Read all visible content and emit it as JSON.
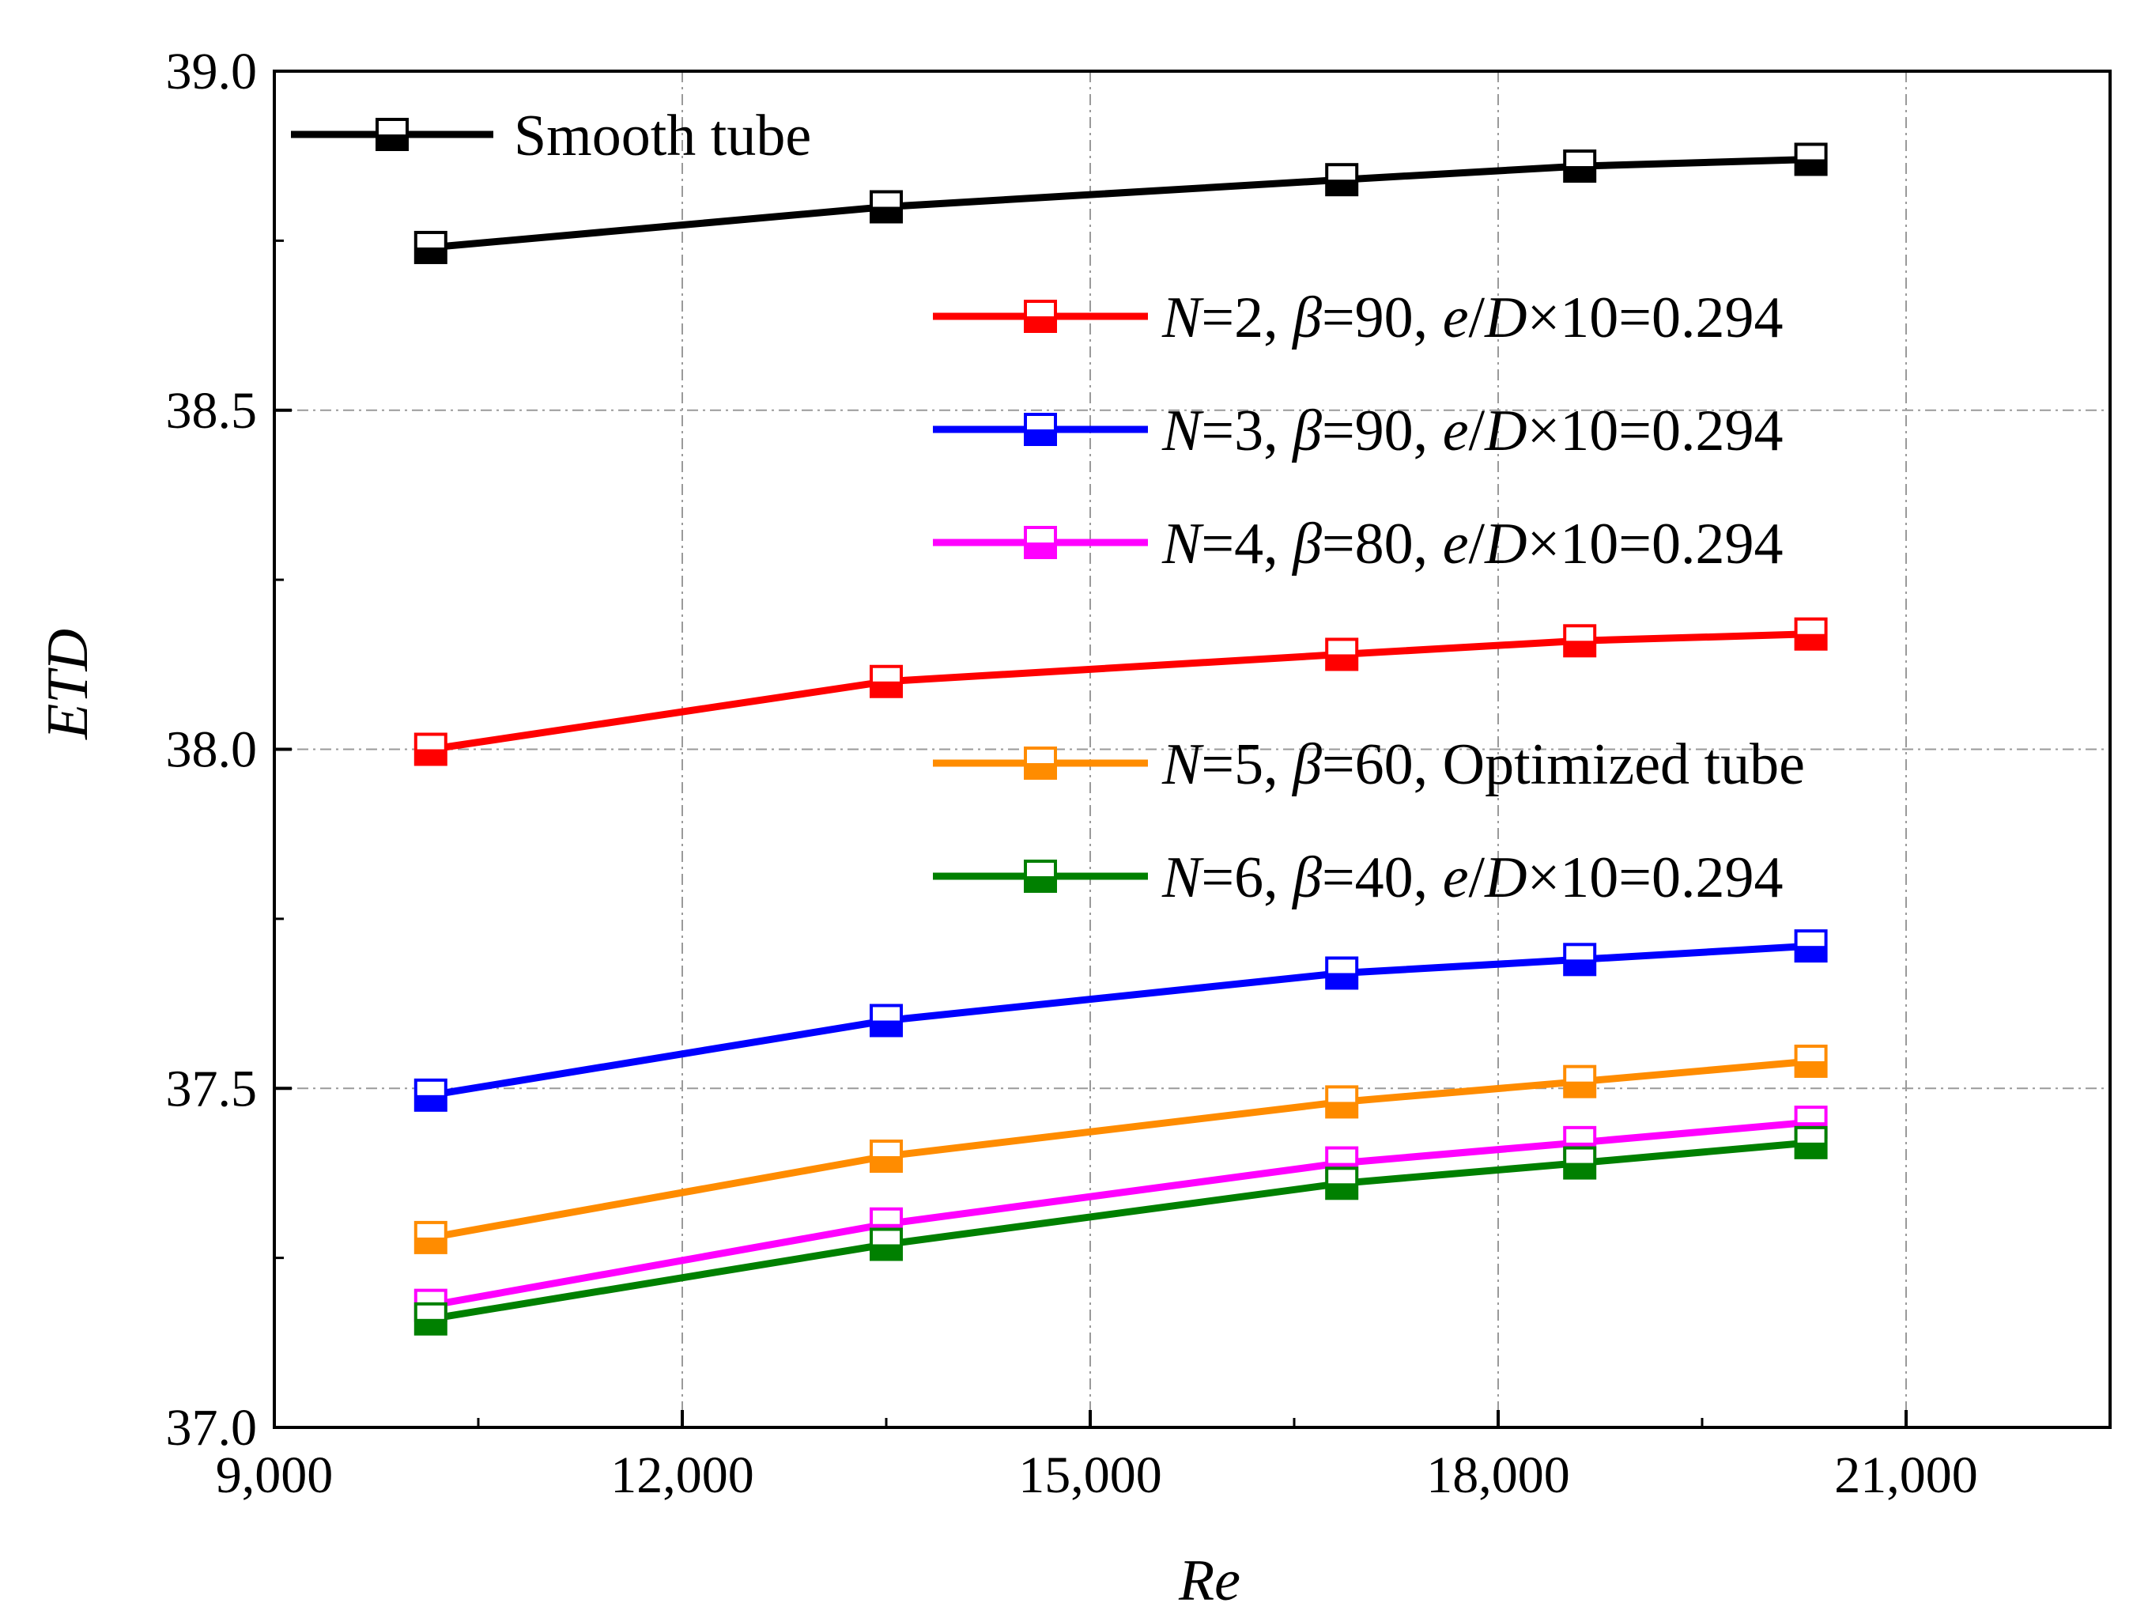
{
  "chart_data": {
    "type": "line",
    "title": "",
    "xlabel": "Re",
    "ylabel": "ETD",
    "xlim": [
      9000,
      22500
    ],
    "ylim": [
      37.0,
      39.0
    ],
    "grid": true,
    "legend_position": "top-right (stacked, inside plot)",
    "x_ticks": [
      9000,
      12000,
      15000,
      18000,
      21000
    ],
    "x_tick_labels": [
      "9,000",
      "12,000",
      "15,000",
      "18,000",
      "21,000"
    ],
    "y_ticks": [
      37.0,
      37.5,
      38.0,
      38.5,
      39.0
    ],
    "y_tick_labels": [
      "37.0",
      "37.5",
      "38.0",
      "38.5",
      "39.0"
    ],
    "x": [
      10150,
      13500,
      16850,
      18600,
      20300
    ],
    "series": [
      {
        "name": "Smooth tube",
        "legend_parts": [
          {
            "t": "Smooth tube",
            "i": false
          }
        ],
        "color": "#000000",
        "values": [
          38.74,
          38.8,
          38.84,
          38.86,
          38.87
        ]
      },
      {
        "name": "N=2, β=90, e/D×10=0.294",
        "legend_parts": [
          {
            "t": "N",
            "i": true
          },
          {
            "t": "=2, ",
            "i": false
          },
          {
            "t": "β",
            "i": true
          },
          {
            "t": "=90, ",
            "i": false
          },
          {
            "t": "e",
            "i": true
          },
          {
            "t": "/",
            "i": false
          },
          {
            "t": "D",
            "i": true
          },
          {
            "t": "×10=0.294",
            "i": false
          }
        ],
        "color": "#ff0000",
        "values": [
          38.0,
          38.1,
          38.14,
          38.16,
          38.17
        ]
      },
      {
        "name": "N=3, β=90, e/D×10=0.294",
        "legend_parts": [
          {
            "t": "N",
            "i": true
          },
          {
            "t": "=3, ",
            "i": false
          },
          {
            "t": "β",
            "i": true
          },
          {
            "t": "=90, ",
            "i": false
          },
          {
            "t": "e",
            "i": true
          },
          {
            "t": "/",
            "i": false
          },
          {
            "t": "D",
            "i": true
          },
          {
            "t": "×10=0.294",
            "i": false
          }
        ],
        "color": "#0000ff",
        "values": [
          37.49,
          37.6,
          37.67,
          37.69,
          37.71
        ]
      },
      {
        "name": "N=4, β=80, e/D×10=0.294",
        "legend_parts": [
          {
            "t": "N",
            "i": true
          },
          {
            "t": "=4, ",
            "i": false
          },
          {
            "t": "β",
            "i": true
          },
          {
            "t": "=80, ",
            "i": false
          },
          {
            "t": "e",
            "i": true
          },
          {
            "t": "/",
            "i": false
          },
          {
            "t": "D",
            "i": true
          },
          {
            "t": "×10=0.294",
            "i": false
          }
        ],
        "color": "#ff00ff",
        "values": [
          37.18,
          37.3,
          37.39,
          37.42,
          37.45
        ]
      },
      {
        "name": "N=5, β=60, Optimized tube",
        "legend_parts": [
          {
            "t": "N",
            "i": true
          },
          {
            "t": "=5, ",
            "i": false
          },
          {
            "t": "β",
            "i": true
          },
          {
            "t": "=60, Optimized tube",
            "i": false
          }
        ],
        "color": "#ff8c00",
        "values": [
          37.28,
          37.4,
          37.48,
          37.51,
          37.54
        ]
      },
      {
        "name": "N=6, β=40, e/D×10=0.294",
        "legend_parts": [
          {
            "t": "N",
            "i": true
          },
          {
            "t": "=6, ",
            "i": false
          },
          {
            "t": "β",
            "i": true
          },
          {
            "t": "=40, ",
            "i": false
          },
          {
            "t": "e",
            "i": true
          },
          {
            "t": "/",
            "i": false
          },
          {
            "t": "D",
            "i": true
          },
          {
            "t": "×10=0.294",
            "i": false
          }
        ],
        "color": "#008000",
        "values": [
          37.16,
          37.27,
          37.36,
          37.39,
          37.42
        ]
      }
    ]
  }
}
